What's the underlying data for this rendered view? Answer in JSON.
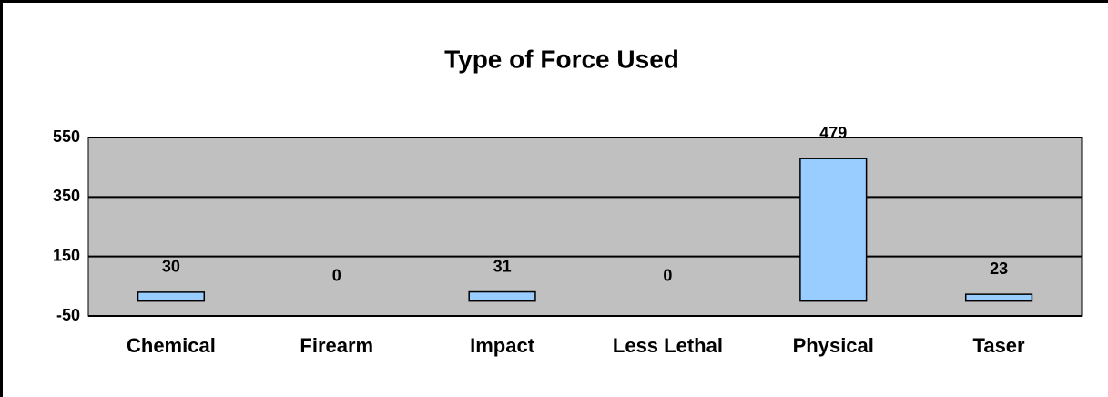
{
  "chart_data": {
    "type": "bar",
    "title": "Type of Force Used",
    "categories": [
      "Chemical",
      "Firearm",
      "Impact",
      "Less Lethal",
      "Physical",
      "Taser"
    ],
    "values": [
      30,
      0,
      31,
      0,
      479,
      23
    ],
    "color": "#99ccff",
    "ylim": [
      -50,
      550
    ],
    "yticks": [
      -50,
      150,
      350,
      550
    ],
    "grid": true
  }
}
